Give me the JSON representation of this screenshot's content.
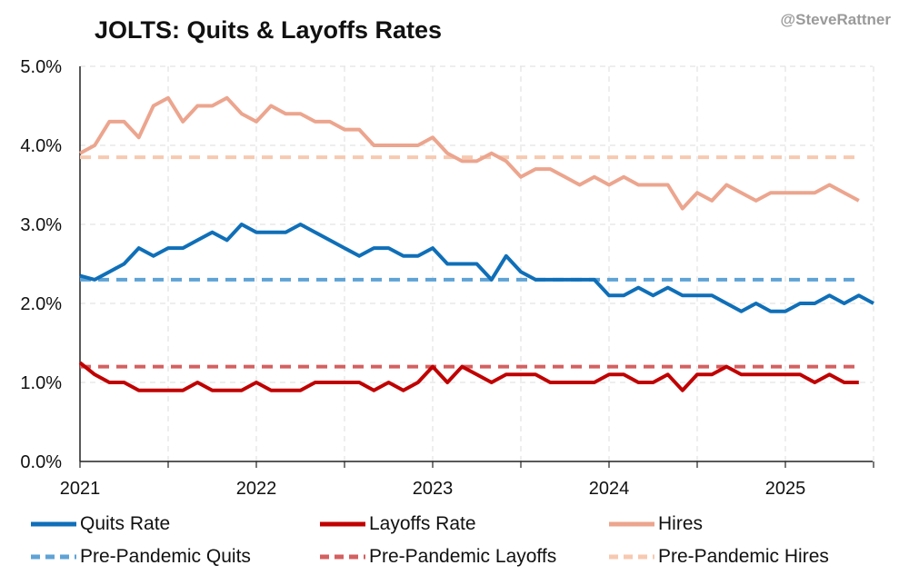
{
  "credit": "@SteveRattner",
  "chart_data": {
    "type": "line",
    "title": "JOLTS: Quits & Layoffs Rates",
    "xlabel": "",
    "ylabel": "",
    "ylim": [
      0,
      5
    ],
    "y_ticks": [
      "0.0%",
      "1.0%",
      "2.0%",
      "3.0%",
      "4.0%",
      "5.0%"
    ],
    "x_ticks": [
      "2021",
      "2022",
      "2023",
      "2024",
      "2025"
    ],
    "x_start": "2021-01",
    "grid": true,
    "legend_position": "bottom",
    "series": [
      {
        "name": "Quits Rate",
        "color": "#0f6fb8",
        "dash": false,
        "values": [
          2.35,
          2.3,
          2.4,
          2.5,
          2.7,
          2.6,
          2.7,
          2.7,
          2.8,
          2.9,
          2.8,
          3.0,
          2.9,
          2.9,
          2.9,
          3.0,
          2.9,
          2.8,
          2.7,
          2.6,
          2.7,
          2.7,
          2.6,
          2.6,
          2.7,
          2.5,
          2.5,
          2.5,
          2.3,
          2.6,
          2.4,
          2.3,
          2.3,
          2.3,
          2.3,
          2.3,
          2.1,
          2.1,
          2.2,
          2.1,
          2.2,
          2.1,
          2.1,
          2.1,
          2.0,
          1.9,
          2.0,
          1.9,
          1.9,
          2.0,
          2.0,
          2.1,
          2.0,
          2.1,
          2.0
        ]
      },
      {
        "name": "Layoffs Rate",
        "color": "#c00000",
        "dash": false,
        "values": [
          1.25,
          1.1,
          1.0,
          1.0,
          0.9,
          0.9,
          0.9,
          0.9,
          1.0,
          0.9,
          0.9,
          0.9,
          1.0,
          0.9,
          0.9,
          0.9,
          1.0,
          1.0,
          1.0,
          1.0,
          0.9,
          1.0,
          0.9,
          1.0,
          1.2,
          1.0,
          1.2,
          1.1,
          1.0,
          1.1,
          1.1,
          1.1,
          1.0,
          1.0,
          1.0,
          1.0,
          1.1,
          1.1,
          1.0,
          1.0,
          1.1,
          0.9,
          1.1,
          1.1,
          1.2,
          1.1,
          1.1,
          1.1,
          1.1,
          1.1,
          1.0,
          1.1,
          1.0,
          1.0
        ]
      },
      {
        "name": "Hires",
        "color": "#eca58e",
        "dash": false,
        "values": [
          3.9,
          4.0,
          4.3,
          4.3,
          4.1,
          4.5,
          4.6,
          4.3,
          4.5,
          4.5,
          4.6,
          4.4,
          4.3,
          4.5,
          4.4,
          4.4,
          4.3,
          4.3,
          4.2,
          4.2,
          4.0,
          4.0,
          4.0,
          4.0,
          4.1,
          3.9,
          3.8,
          3.8,
          3.9,
          3.8,
          3.6,
          3.7,
          3.7,
          3.6,
          3.5,
          3.6,
          3.5,
          3.6,
          3.5,
          3.5,
          3.5,
          3.2,
          3.4,
          3.3,
          3.5,
          3.4,
          3.3,
          3.4,
          3.4,
          3.4,
          3.4,
          3.5,
          3.4,
          3.3
        ]
      },
      {
        "name": "Pre-Pandemic Quits",
        "color": "#5fa3d6",
        "dash": true,
        "values": [
          2.3,
          2.3
        ]
      },
      {
        "name": "Pre-Pandemic Layoffs",
        "color": "#d56060",
        "dash": true,
        "values": [
          1.2,
          1.2
        ]
      },
      {
        "name": "Pre-Pandemic Hires",
        "color": "#f7c9b0",
        "dash": true,
        "values": [
          3.85,
          3.85
        ]
      }
    ]
  }
}
